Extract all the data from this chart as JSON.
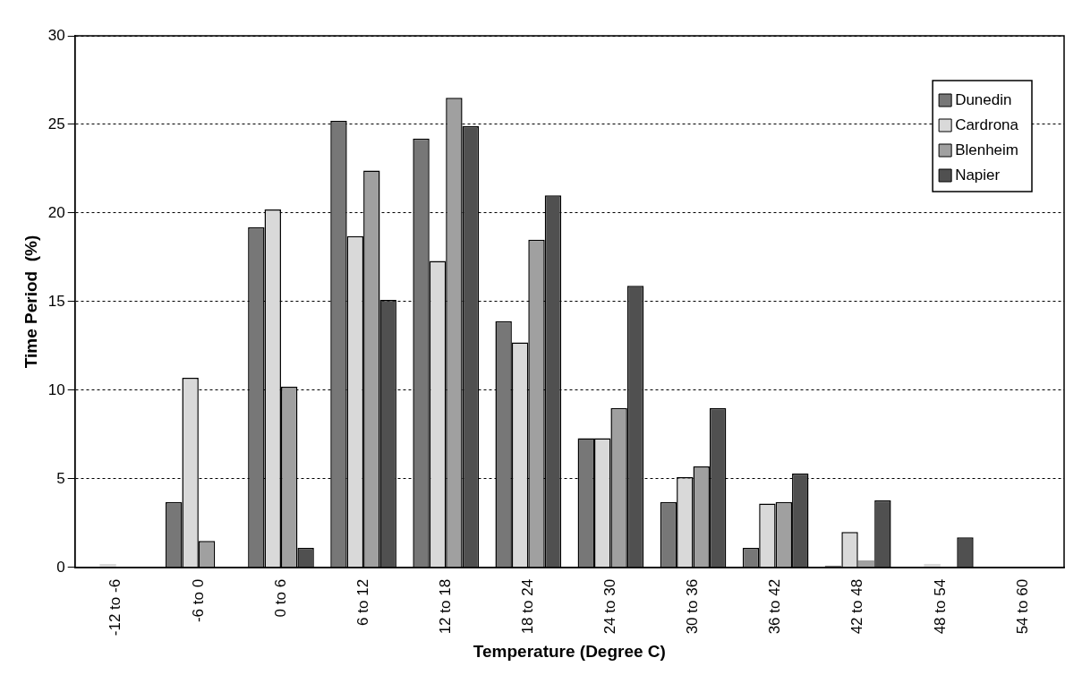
{
  "chart_data": {
    "type": "bar",
    "xlabel": "Temperature (Degree C)",
    "ylabel": "Time Period  (%)",
    "categories": [
      "-12 to -6",
      "-6 to 0",
      "0 to 6",
      "6 to 12",
      "12 to 18",
      "18 to 24",
      "24 to 30",
      "30 to 36",
      "36 to 42",
      "42 to 48",
      "48 to 54",
      "54 to 60"
    ],
    "series": [
      {
        "name": "Dunedin",
        "color": "#777777",
        "values": [
          0,
          3.7,
          19.2,
          25.2,
          24.2,
          13.9,
          7.3,
          3.7,
          1.1,
          0.1,
          0,
          0
        ]
      },
      {
        "name": "Cardrona",
        "color": "#d9d9d9",
        "values": [
          0.2,
          10.7,
          20.2,
          18.7,
          17.3,
          12.7,
          7.3,
          5.1,
          3.6,
          2.0,
          0.2,
          0
        ]
      },
      {
        "name": "Blenheim",
        "color": "#a0a0a0",
        "values": [
          0,
          1.5,
          10.2,
          22.4,
          26.5,
          18.5,
          9.0,
          5.7,
          3.7,
          0.4,
          0,
          0
        ]
      },
      {
        "name": "Napier",
        "color": "#505050",
        "values": [
          0,
          0,
          1.1,
          15.1,
          24.9,
          21.0,
          15.9,
          9.0,
          5.3,
          3.8,
          1.7,
          0
        ]
      }
    ],
    "ylim": [
      0,
      30
    ],
    "yticks": [
      0,
      5,
      10,
      15,
      20,
      25,
      30
    ],
    "grid": "y",
    "legend": "top right"
  }
}
